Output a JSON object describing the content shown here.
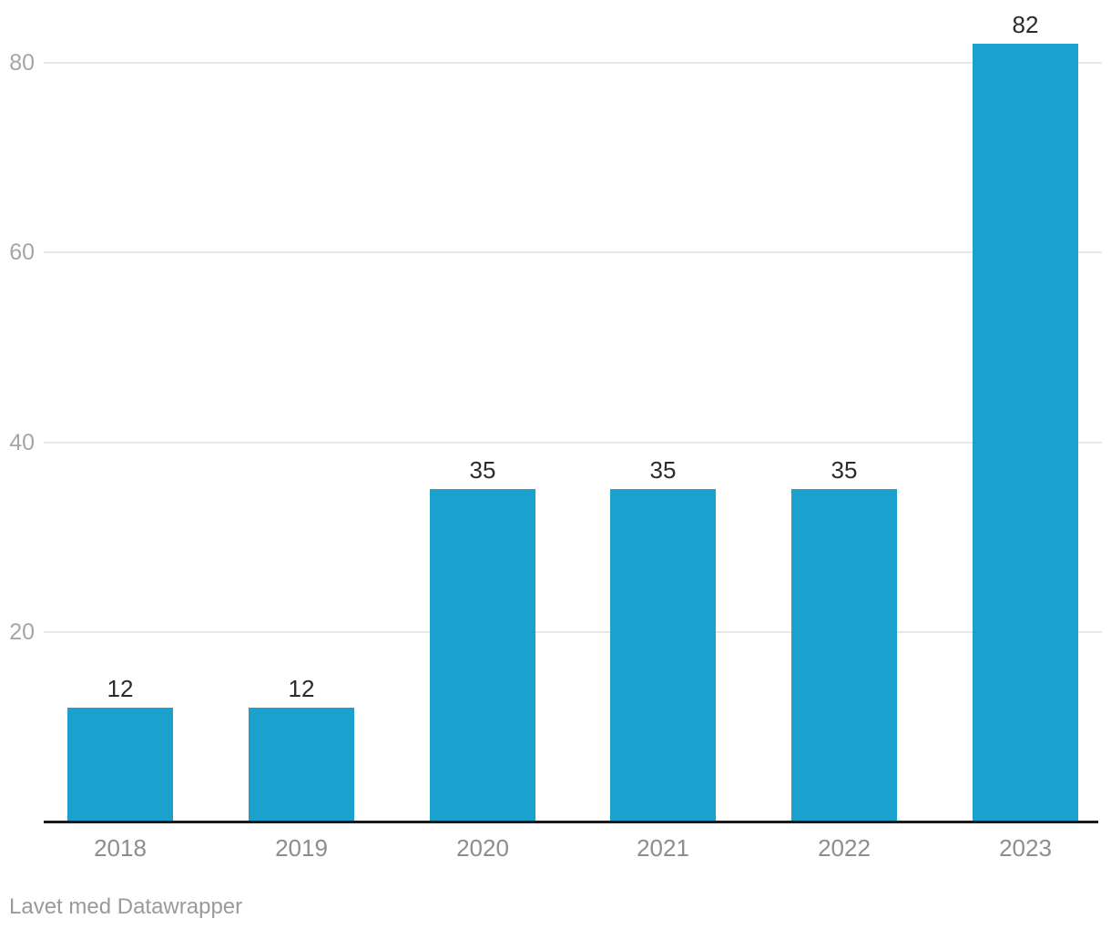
{
  "chart_data": {
    "type": "bar",
    "categories": [
      "2018",
      "2019",
      "2020",
      "2021",
      "2022",
      "2023"
    ],
    "values": [
      12,
      12,
      35,
      35,
      35,
      82
    ],
    "value_labels": [
      "12",
      "12",
      "35",
      "35",
      "35",
      "82"
    ],
    "title": "",
    "xlabel": "",
    "ylabel": "",
    "ylim": [
      0,
      80
    ],
    "yticks": [
      20,
      40,
      60,
      80
    ],
    "grid": true,
    "legend": "none",
    "bar_color": "#1aa1ce"
  },
  "footer": {
    "credit": "Lavet med Datawrapper"
  },
  "colors": {
    "bar": "#1aa1ce",
    "axis_line": "#1a1a1a",
    "gridline": "#e7e7e7",
    "tick_label": "#a6a6a6",
    "category_label": "#8d8d8d",
    "value_label": "#2b2b2b",
    "credit": "#9a9a9a",
    "background": "#ffffff"
  }
}
